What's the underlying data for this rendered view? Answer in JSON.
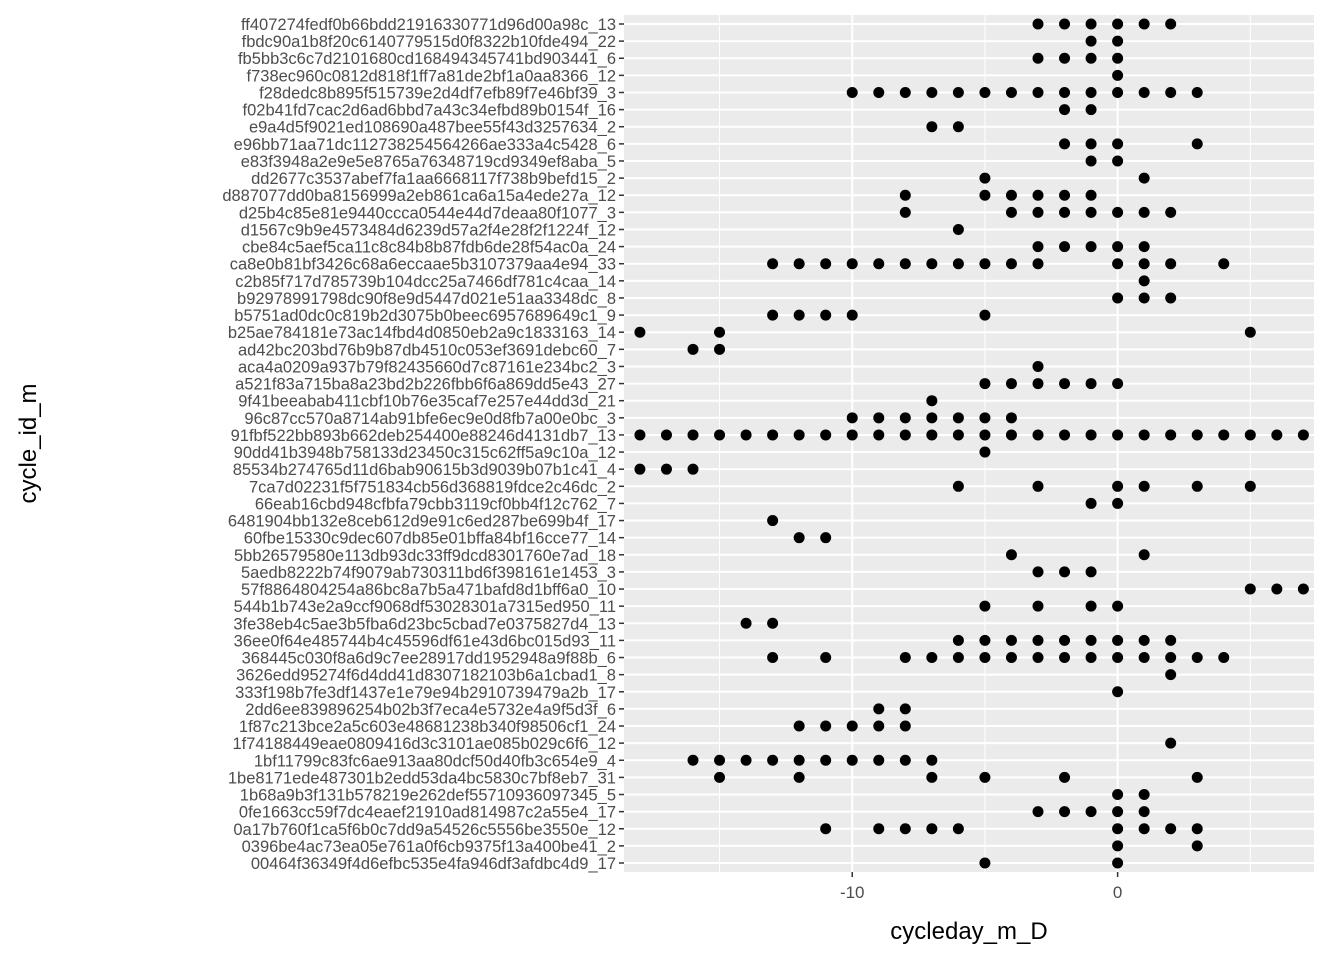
{
  "chart_data": {
    "type": "scatter",
    "xlabel": "cycleday_m_D",
    "ylabel": "cycle_id_m",
    "xlim": [
      -18.6,
      7.4
    ],
    "x_ticks": [
      -10,
      0
    ],
    "x_tick_labels": [
      "-10",
      "0"
    ],
    "grid": true,
    "panel_background": "#ebebeb",
    "point_color": "#000000",
    "categories": [
      "ff407274fedf0b66bdd21916330771d96d00a98c_13",
      "fbdc90a1b8f20c6140779515d0f8322b10fde494_22",
      "fb5bb3c6c7d2101680cd168494345741bd903441_6",
      "f738ec960c0812d818f1ff7a81de2bf1a0aa8366_12",
      "f28dedc8b895f515739e2d4df7efb89f7e46bf39_3",
      "f02b41fd7cac2d6ad6bbd7a43c34efbd89b0154f_16",
      "e9a4d5f9021ed108690a487bee55f43d3257634_2",
      "e96bb71aa71dc112738254564266ae333a4c5428_6",
      "e83f3948a2e9e5e8765a76348719cd9349ef8aba_5",
      "dd2677c3537abef7fa1aa6668117f738b9befd15_2",
      "d887077dd0ba8156999a2eb861ca6a15a4ede27a_12",
      "d25b4c85e81e9440ccca0544e44d7deaa80f1077_3",
      "d1567c9b9e4573484d6239d57a2f4e28f2f1224f_12",
      "cbe84c5aef5ca11c8c84b8b87fdb6de28f54ac0a_24",
      "ca8e0b81bf3426c68a6eccaae5b3107379aa4e94_33",
      "c2b85f717d785739b104dcc25a7466df781c4caa_14",
      "b92978991798dc90f8e9d5447d021e51aa3348dc_8",
      "b5751ad0dc0c819b2d3075b0beec6957689649c1_9",
      "b25ae784181e73ac14fbd4d0850eb2a9c1833163_14",
      "ad42bc203bd76b9b87db4510c053ef3691debc60_7",
      "aca4a0209a937b79f82435660d7c87161e234bc2_3",
      "a521f83a715ba8a23bd2b226fbb6f6a869dd5e43_27",
      "9f41beeabab411cbf10b76e35caf7e257e44dd3d_21",
      "96c87cc570a8714ab91bfe6ec9e0d8fb7a00e0bc_3",
      "91fbf522bb893b662deb254400e88246d4131db7_13",
      "90dd41b3948b758133d23450c315c62ff5a9c10a_12",
      "85534b274765d11d6bab90615b3d9039b07b1c41_4",
      "7ca7d02231f5f751834cb56d368819fdce2c46dc_2",
      "66eab16cbd948cfbfa79cbb3119cf0bb4f12c762_7",
      "6481904bb132e8ceb612d9e91c6ed287be699b4f_17",
      "60fbe15330c9dec607db85e01bffa84bf16cce77_14",
      "5bb26579580e113db93dc33ff9dcd8301760e7ad_18",
      "5aedb8222b74f9079ab730311bd6f398161e1453_3",
      "57f8864804254a86bc8a7b5a471bafd8d1bff6a0_10",
      "544b1b743e2a9ccf9068df53028301a7315ed950_11",
      "3fe38eb4c5ae3b5fba6d23bc5cbad7e0375827d4_13",
      "36ee0f64e485744b4c45596df61e43d6bc015d93_11",
      "368445c030f8a6d9c7ee28917dd1952948a9f88b_6",
      "3626edd95274f6d4dd41d8307182103b6a1cbad1_8",
      "333f198b7fe3df1437e1e79e94b2910739479a2b_17",
      "2dd6ee839896254b02b3f7eca4e5732e4a9f5d3f_6",
      "1f87c213bce2a5c603e48681238b340f98506cf1_24",
      "1f74188449eae0809416d3c3101ae085b029c6f6_12",
      "1bf11799c83fc6ae913aa80dcf50d40fb3c654e9_4",
      "1be8171ede487301b2edd53da4bc5830c7bf8eb7_31",
      "1b68a9b3f131b578219e262def55710936097345_5",
      "0fe1663cc59f7dc4eaef21910ad814987c2a55e4_17",
      "0a17b760f1ca5f6b0c7dd9a54526c5556be3550e_12",
      "0396be4ac73ea05e761a0f6cb9375f13a400be41_2",
      "00464f36349f4d6efbc535e4fa946df3afdbc4d9_17"
    ],
    "points": [
      {
        "y": "ff407274fedf0b66bdd21916330771d96d00a98c_13",
        "x": [
          -3,
          -2,
          -1,
          0,
          1,
          2
        ]
      },
      {
        "y": "fbdc90a1b8f20c6140779515d0f8322b10fde494_22",
        "x": [
          -1,
          0
        ]
      },
      {
        "y": "fb5bb3c6c7d2101680cd168494345741bd903441_6",
        "x": [
          -3,
          -2,
          -1,
          0
        ]
      },
      {
        "y": "f738ec960c0812d818f1ff7a81de2bf1a0aa8366_12",
        "x": [
          0
        ]
      },
      {
        "y": "f28dedc8b895f515739e2d4df7efb89f7e46bf39_3",
        "x": [
          -10,
          -9,
          -8,
          -7,
          -6,
          -5,
          -4,
          -3,
          -2,
          -1,
          0,
          1,
          2,
          3
        ]
      },
      {
        "y": "f02b41fd7cac2d6ad6bbd7a43c34efbd89b0154f_16",
        "x": [
          -2,
          -1
        ]
      },
      {
        "y": "e9a4d5f9021ed108690a487bee55f43d3257634_2",
        "x": [
          -7,
          -6
        ]
      },
      {
        "y": "e96bb71aa71dc112738254564266ae333a4c5428_6",
        "x": [
          -2,
          -1,
          0,
          3
        ]
      },
      {
        "y": "e83f3948a2e9e5e8765a76348719cd9349ef8aba_5",
        "x": [
          -1,
          0
        ]
      },
      {
        "y": "dd2677c3537abef7fa1aa6668117f738b9befd15_2",
        "x": [
          -5,
          1
        ]
      },
      {
        "y": "d887077dd0ba8156999a2eb861ca6a15a4ede27a_12",
        "x": [
          -8,
          -5,
          -4,
          -3,
          -2,
          -1
        ]
      },
      {
        "y": "d25b4c85e81e9440ccca0544e44d7deaa80f1077_3",
        "x": [
          -8,
          -4,
          -3,
          -2,
          -1,
          0,
          1,
          2
        ]
      },
      {
        "y": "d1567c9b9e4573484d6239d57a2f4e28f2f1224f_12",
        "x": [
          -6
        ]
      },
      {
        "y": "cbe84c5aef5ca11c8c84b8b87fdb6de28f54ac0a_24",
        "x": [
          -3,
          -2,
          -1,
          0,
          1
        ]
      },
      {
        "y": "ca8e0b81bf3426c68a6eccaae5b3107379aa4e94_33",
        "x": [
          -13,
          -12,
          -11,
          -10,
          -9,
          -8,
          -7,
          -6,
          -5,
          -4,
          -3,
          0,
          1,
          2,
          4
        ]
      },
      {
        "y": "c2b85f717d785739b104dcc25a7466df781c4caa_14",
        "x": [
          1
        ]
      },
      {
        "y": "b92978991798dc90f8e9d5447d021e51aa3348dc_8",
        "x": [
          0,
          1,
          2
        ]
      },
      {
        "y": "b5751ad0dc0c819b2d3075b0beec6957689649c1_9",
        "x": [
          -13,
          -12,
          -11,
          -10,
          -5
        ]
      },
      {
        "y": "b25ae784181e73ac14fbd4d0850eb2a9c1833163_14",
        "x": [
          -18,
          -15,
          5
        ]
      },
      {
        "y": "ad42bc203bd76b9b87db4510c053ef3691debc60_7",
        "x": [
          -16,
          -15
        ]
      },
      {
        "y": "aca4a0209a937b79f82435660d7c87161e234bc2_3",
        "x": [
          -3
        ]
      },
      {
        "y": "a521f83a715ba8a23bd2b226fbb6f6a869dd5e43_27",
        "x": [
          -5,
          -4,
          -3,
          -2,
          -1,
          0
        ]
      },
      {
        "y": "9f41beeabab411cbf10b76e35caf7e257e44dd3d_21",
        "x": [
          -7
        ]
      },
      {
        "y": "96c87cc570a8714ab91bfe6ec9e0d8fb7a00e0bc_3",
        "x": [
          -10,
          -9,
          -8,
          -7,
          -6,
          -5,
          -4
        ]
      },
      {
        "y": "91fbf522bb893b662deb254400e88246d4131db7_13",
        "x": [
          -18,
          -17,
          -16,
          -15,
          -14,
          -13,
          -12,
          -11,
          -10,
          -9,
          -8,
          -7,
          -6,
          -5,
          -4,
          -3,
          -2,
          -1,
          0,
          1,
          2,
          3,
          4,
          5,
          6,
          7
        ]
      },
      {
        "y": "90dd41b3948b758133d23450c315c62ff5a9c10a_12",
        "x": [
          -5
        ]
      },
      {
        "y": "85534b274765d11d6bab90615b3d9039b07b1c41_4",
        "x": [
          -18,
          -17,
          -16
        ]
      },
      {
        "y": "7ca7d02231f5f751834cb56d368819fdce2c46dc_2",
        "x": [
          -6,
          -3,
          0,
          1,
          3,
          5
        ]
      },
      {
        "y": "66eab16cbd948cfbfa79cbb3119cf0bb4f12c762_7",
        "x": [
          -1,
          0
        ]
      },
      {
        "y": "6481904bb132e8ceb612d9e91c6ed287be699b4f_17",
        "x": [
          -13
        ]
      },
      {
        "y": "60fbe15330c9dec607db85e01bffa84bf16cce77_14",
        "x": [
          -12,
          -11
        ]
      },
      {
        "y": "5bb26579580e113db93dc33ff9dcd8301760e7ad_18",
        "x": [
          -4,
          1
        ]
      },
      {
        "y": "5aedb8222b74f9079ab730311bd6f398161e1453_3",
        "x": [
          -3,
          -2,
          -1
        ]
      },
      {
        "y": "57f8864804254a86bc8a7b5a471bafd8d1bff6a0_10",
        "x": [
          5,
          6,
          7
        ]
      },
      {
        "y": "544b1b743e2a9ccf9068df53028301a7315ed950_11",
        "x": [
          -5,
          -3,
          -1,
          0
        ]
      },
      {
        "y": "3fe38eb4c5ae3b5fba6d23bc5cbad7e0375827d4_13",
        "x": [
          -14,
          -13
        ]
      },
      {
        "y": "36ee0f64e485744b4c45596df61e43d6bc015d93_11",
        "x": [
          -6,
          -5,
          -4,
          -3,
          -2,
          -1,
          0,
          1,
          2
        ]
      },
      {
        "y": "368445c030f8a6d9c7ee28917dd1952948a9f88b_6",
        "x": [
          -13,
          -11,
          -8,
          -7,
          -6,
          -5,
          -4,
          -3,
          -2,
          -1,
          0,
          1,
          2,
          3,
          4
        ]
      },
      {
        "y": "3626edd95274f6d4dd41d8307182103b6a1cbad1_8",
        "x": [
          2
        ]
      },
      {
        "y": "333f198b7fe3df1437e1e79e94b2910739479a2b_17",
        "x": [
          0
        ]
      },
      {
        "y": "2dd6ee839896254b02b3f7eca4e5732e4a9f5d3f_6",
        "x": [
          -9,
          -8
        ]
      },
      {
        "y": "1f87c213bce2a5c603e48681238b340f98506cf1_24",
        "x": [
          -12,
          -11,
          -10,
          -9,
          -8
        ]
      },
      {
        "y": "1f74188449eae0809416d3c3101ae085b029c6f6_12",
        "x": [
          2
        ]
      },
      {
        "y": "1bf11799c83fc6ae913aa80dcf50d40fb3c654e9_4",
        "x": [
          -16,
          -15,
          -14,
          -13,
          -12,
          -11,
          -10,
          -9,
          -8,
          -7
        ]
      },
      {
        "y": "1be8171ede487301b2edd53da4bc5830c7bf8eb7_31",
        "x": [
          -15,
          -12,
          -7,
          -5,
          -2,
          3
        ]
      },
      {
        "y": "1b68a9b3f131b578219e262def55710936097345_5",
        "x": [
          0,
          1
        ]
      },
      {
        "y": "0fe1663cc59f7dc4eaef21910ad814987c2a55e4_17",
        "x": [
          -3,
          -2,
          -1,
          0,
          1
        ]
      },
      {
        "y": "0a17b760f1ca5f6b0c7dd9a54526c5556be3550e_12",
        "x": [
          -11,
          -9,
          -8,
          -7,
          -6,
          0,
          1,
          2,
          3
        ]
      },
      {
        "y": "0396be4ac73ea05e761a0f6cb9375f13a400be41_2",
        "x": [
          0,
          3
        ]
      },
      {
        "y": "00464f36349f4d6efbc535e4fa946df3afdbc4d9_17",
        "x": [
          -5,
          0
        ]
      }
    ]
  }
}
